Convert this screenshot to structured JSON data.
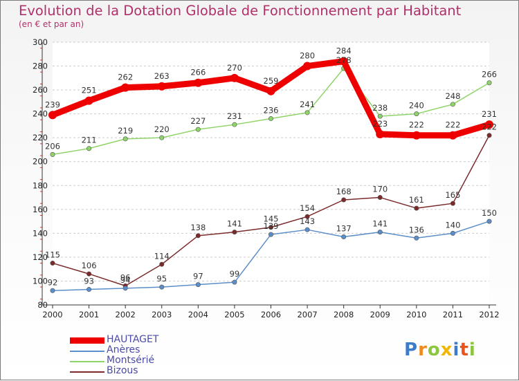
{
  "header": {
    "title": "Evolution de la Dotation Globale de Fonctionnement par Habitant",
    "subtitle": "(en € et par an)"
  },
  "colors": {
    "HAUTAGET": "#ee0000",
    "Anères": "#5b8ec9",
    "Montsérié": "#8fd468",
    "Bizous": "#7a2a2a",
    "title": "#b0306a",
    "grid": "#cccccc"
  },
  "chart_data": {
    "type": "line",
    "title": "Evolution de la Dotation Globale de Fonctionnement par Habitant",
    "subtitle": "(en € et par an)",
    "x": [
      "2000",
      "2001",
      "2002",
      "2003",
      "2004",
      "2005",
      "2006",
      "2007",
      "2008",
      "2009",
      "2010",
      "2011",
      "2012"
    ],
    "ylim": [
      80,
      300
    ],
    "yticks": [
      80,
      100,
      120,
      140,
      160,
      180,
      200,
      220,
      240,
      260,
      280,
      300
    ],
    "grid": "horizontal dashed",
    "legend_position": "bottom-left",
    "series": [
      {
        "name": "HAUTAGET",
        "color": "#ee0000",
        "values": [
          239,
          251,
          262,
          263,
          266,
          270,
          259,
          280,
          284,
          223,
          222,
          222,
          231
        ]
      },
      {
        "name": "Anères",
        "color": "#5b8ec9",
        "values": [
          92,
          93,
          94,
          95,
          97,
          99,
          139,
          143,
          137,
          141,
          136,
          140,
          150
        ]
      },
      {
        "name": "Montsérié",
        "color": "#8fd468",
        "values": [
          206,
          211,
          219,
          220,
          227,
          231,
          236,
          241,
          278,
          238,
          240,
          248,
          266
        ]
      },
      {
        "name": "Bizous",
        "color": "#7a2a2a",
        "values": [
          115,
          106,
          96,
          114,
          138,
          141,
          145,
          154,
          168,
          170,
          161,
          165,
          222
        ]
      }
    ]
  },
  "legend": {
    "items": [
      "HAUTAGET",
      "Anères",
      "Montsérié",
      "Bizous"
    ]
  },
  "logo": {
    "text": "Proxiti",
    "letters": [
      {
        "ch": "P",
        "color": "#3d7cc9"
      },
      {
        "ch": "r",
        "color": "#f08a1c"
      },
      {
        "ch": "o",
        "color": "#8cc63f"
      },
      {
        "ch": "x",
        "color": "#f2b705"
      },
      {
        "ch": "i",
        "color": "#3d7cc9"
      },
      {
        "ch": "t",
        "color": "#e8541c"
      },
      {
        "ch": "i",
        "color": "#8cc63f"
      }
    ]
  }
}
